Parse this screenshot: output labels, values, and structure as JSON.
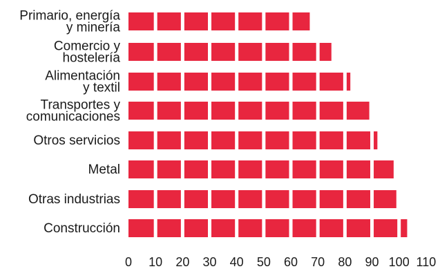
{
  "chart_data": {
    "type": "bar",
    "orientation": "horizontal",
    "title": "",
    "xlabel": "",
    "ylabel": "",
    "categories": [
      [
        "Primario, energía",
        "y minería"
      ],
      [
        "Comercio y",
        "hostelería"
      ],
      [
        "Alimentación",
        "y textil"
      ],
      [
        "Transportes y",
        "comunicaciones"
      ],
      [
        "Otros servicios"
      ],
      [
        "Metal"
      ],
      [
        "Otras industrias"
      ],
      [
        "Construcción"
      ]
    ],
    "values": [
      67,
      75,
      82,
      89,
      92,
      98,
      99,
      103
    ],
    "xlim": [
      0,
      110
    ],
    "xticks": [
      "0",
      "10",
      "20",
      "30",
      "40",
      "50",
      "60",
      "70",
      "80",
      "90",
      "100",
      "110"
    ],
    "grid": false,
    "legend": "none",
    "bar_color": "#e8263f",
    "segment_separator_color": "#ffffff"
  }
}
